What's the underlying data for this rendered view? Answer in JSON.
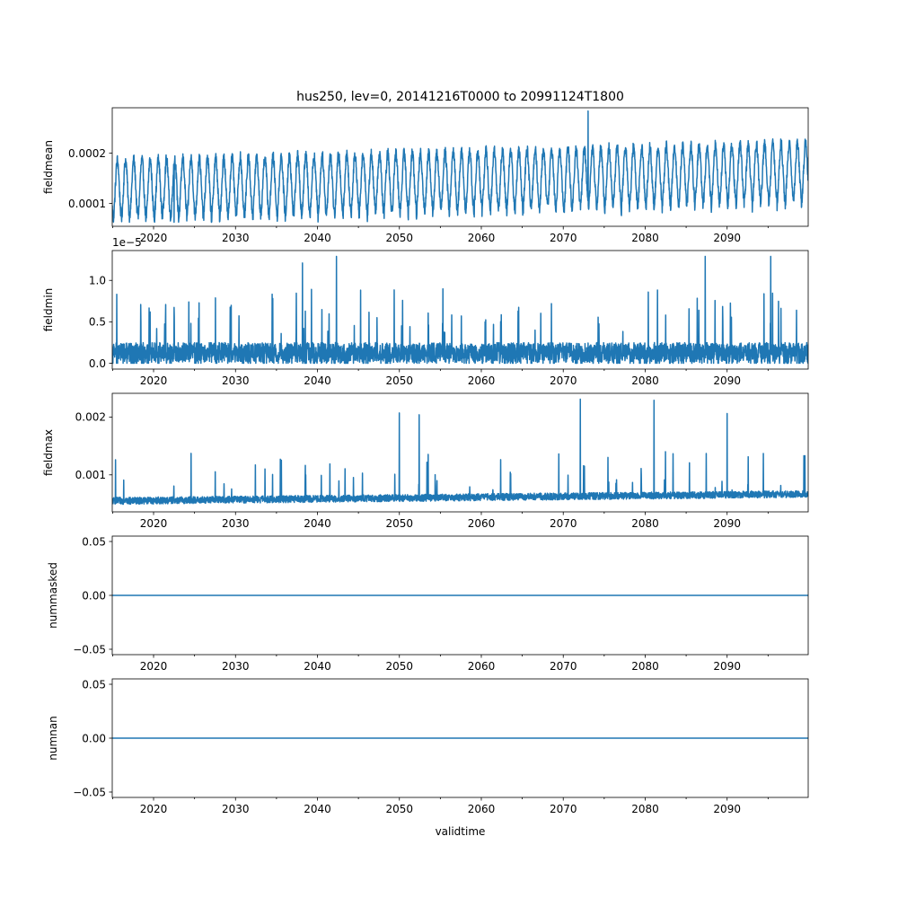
{
  "figure": {
    "title": "hus250, lev=0, 20141216T0000 to 20991124T1800",
    "xlabel": "validtime",
    "line_color": "#1f77b4"
  },
  "chart_data": [
    {
      "type": "line",
      "ylabel": "fieldmean",
      "xlim": [
        "2014-12-16",
        "2099-11-24"
      ],
      "ylim": [
        5.45e-05,
        0.0002905
      ],
      "x_ticks": [
        "2020",
        "2030",
        "2040",
        "2050",
        "2060",
        "2070",
        "2080",
        "2090"
      ],
      "y_ticks": [
        {
          "value": 0.0001,
          "label": "0.0001"
        },
        {
          "value": 0.0002,
          "label": "0.0002"
        }
      ],
      "series": [
        {
          "pattern": "seasonal",
          "base": 0.00013,
          "trend": 3.5e-05,
          "amplitude": 5.5e-05,
          "noise": 1.2e-05,
          "dip": 1.5e-05,
          "max": 0.000284,
          "min": 6.25e-05
        }
      ],
      "annotations": [
        {
          "x": "2073-01-15",
          "y": 0.000284
        },
        {
          "x": "2022-07-01",
          "y": 6.25e-05
        }
      ]
    },
    {
      "type": "line",
      "ylabel": "fieldmin",
      "offset_text": "1e−5",
      "scale": 1e-05,
      "xlim": [
        "2014-12-16",
        "2099-11-24"
      ],
      "ylim": [
        -0.07,
        1.36
      ],
      "x_ticks": [
        "2020",
        "2030",
        "2040",
        "2050",
        "2060",
        "2070",
        "2080",
        "2090"
      ],
      "y_ticks": [
        {
          "value": 0.0,
          "label": "0.0"
        },
        {
          "value": 0.5,
          "label": "0.5"
        },
        {
          "value": 1.0,
          "label": "1.0"
        }
      ],
      "series": [
        {
          "pattern": "spiky",
          "base": 0.13,
          "band": 0.12,
          "spike_typical": 0.75,
          "max": 1.29,
          "min": 0.0
        }
      ],
      "annotations": [
        {
          "x": "2042-05-01",
          "y": 1.29
        },
        {
          "x": "2038-03-01",
          "y": 1.21
        },
        {
          "x": "2087-05-01",
          "y": 1.29
        },
        {
          "x": "2095-05-01",
          "y": 1.29
        }
      ]
    },
    {
      "type": "line",
      "ylabel": "fieldmax",
      "xlim": [
        "2014-12-16",
        "2099-11-24"
      ],
      "ylim": [
        0.00036,
        0.00241
      ],
      "x_ticks": [
        "2020",
        "2030",
        "2040",
        "2050",
        "2060",
        "2070",
        "2080",
        "2090"
      ],
      "y_ticks": [
        {
          "value": 0.001,
          "label": "0.001"
        },
        {
          "value": 0.002,
          "label": "0.002"
        }
      ],
      "series": [
        {
          "pattern": "spiky_up",
          "base": 0.00052,
          "trend": 0.00012,
          "band": 0.00012,
          "spike_typical": 0.0013,
          "max": 0.00231,
          "min": 0.00045
        }
      ],
      "annotations": [
        {
          "x": "2072-02-01",
          "y": 0.00231
        },
        {
          "x": "2081-02-01",
          "y": 0.00229
        },
        {
          "x": "2050-01-01",
          "y": 0.00207
        },
        {
          "x": "2052-06-01",
          "y": 0.00204
        },
        {
          "x": "2090-01-01",
          "y": 0.00206
        }
      ]
    },
    {
      "type": "line",
      "ylabel": "nummasked",
      "xlim": [
        "2014-12-16",
        "2099-11-24"
      ],
      "ylim": [
        -0.055,
        0.055
      ],
      "x_ticks": [
        "2020",
        "2030",
        "2040",
        "2050",
        "2060",
        "2070",
        "2080",
        "2090"
      ],
      "y_ticks": [
        {
          "value": -0.05,
          "label": "−0.05"
        },
        {
          "value": 0.0,
          "label": "0.00"
        },
        {
          "value": 0.05,
          "label": "0.05"
        }
      ],
      "series": [
        {
          "pattern": "constant",
          "value": 0
        }
      ]
    },
    {
      "type": "line",
      "ylabel": "numnan",
      "xlim": [
        "2014-12-16",
        "2099-11-24"
      ],
      "ylim": [
        -0.055,
        0.055
      ],
      "x_ticks": [
        "2020",
        "2030",
        "2040",
        "2050",
        "2060",
        "2070",
        "2080",
        "2090"
      ],
      "y_ticks": [
        {
          "value": -0.05,
          "label": "−0.05"
        },
        {
          "value": 0.0,
          "label": "0.00"
        },
        {
          "value": 0.05,
          "label": "0.05"
        }
      ],
      "series": [
        {
          "pattern": "constant",
          "value": 0
        }
      ]
    }
  ]
}
